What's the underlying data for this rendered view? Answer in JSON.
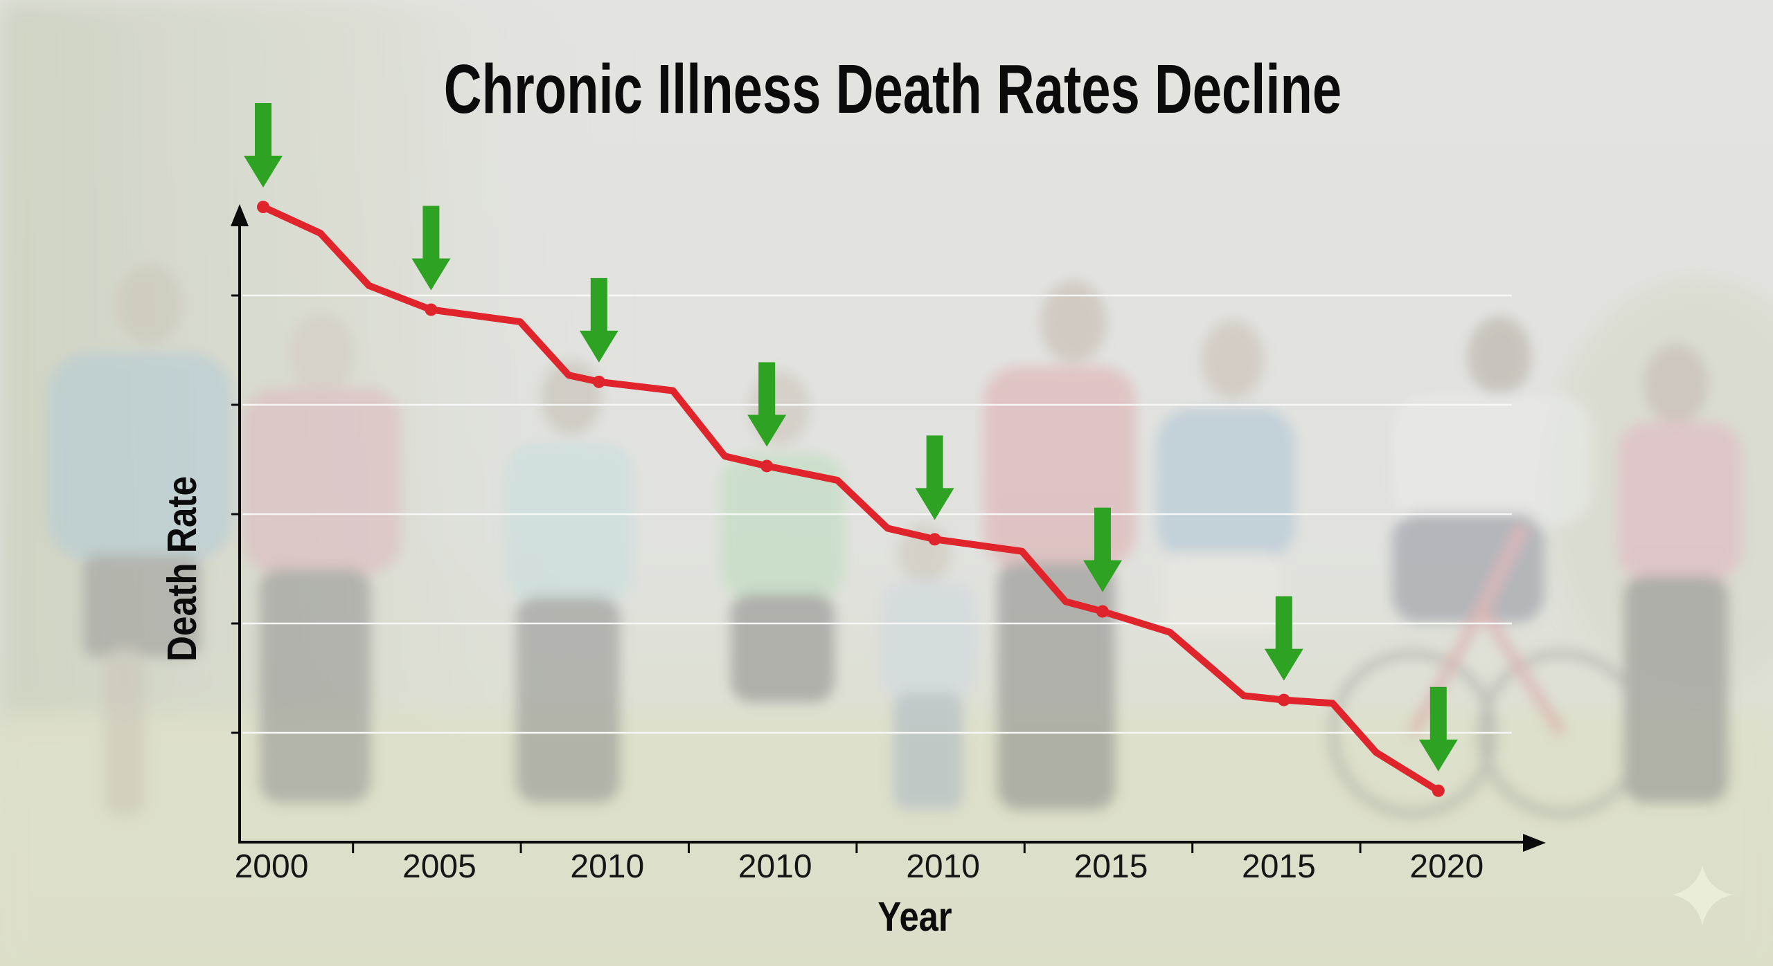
{
  "chart_data": {
    "type": "line",
    "title": "Chronic Illness Death Rates Decline",
    "xlabel": "Year",
    "ylabel": "Death Rate",
    "x_tick_labels": [
      "2000",
      "2005",
      "2010",
      "2010",
      "2010",
      "2015",
      "2015",
      "2020"
    ],
    "y_tick_labels": [],
    "ylim": [
      0,
      5.84
    ],
    "grid": true,
    "gridlines_y": [
      1,
      2,
      3,
      4,
      5
    ],
    "legend": "none",
    "series": [
      {
        "name": "Death Rate",
        "color": "#e0242b",
        "points": [
          {
            "x": 0.0,
            "y": 5.81,
            "marker": true
          },
          {
            "x": 0.34,
            "y": 5.57,
            "marker": false
          },
          {
            "x": 0.63,
            "y": 5.09,
            "marker": false
          },
          {
            "x": 1.0,
            "y": 4.87,
            "marker": true
          },
          {
            "x": 1.53,
            "y": 4.76,
            "marker": false
          },
          {
            "x": 1.82,
            "y": 4.27,
            "marker": false
          },
          {
            "x": 2.0,
            "y": 4.21,
            "marker": true
          },
          {
            "x": 2.44,
            "y": 4.13,
            "marker": false
          },
          {
            "x": 2.75,
            "y": 3.53,
            "marker": false
          },
          {
            "x": 3.0,
            "y": 3.44,
            "marker": true
          },
          {
            "x": 3.42,
            "y": 3.31,
            "marker": false
          },
          {
            "x": 3.72,
            "y": 2.87,
            "marker": false
          },
          {
            "x": 4.0,
            "y": 2.77,
            "marker": true
          },
          {
            "x": 4.52,
            "y": 2.66,
            "marker": false
          },
          {
            "x": 4.78,
            "y": 2.2,
            "marker": false
          },
          {
            "x": 5.0,
            "y": 2.11,
            "marker": true
          },
          {
            "x": 5.4,
            "y": 1.92,
            "marker": false
          },
          {
            "x": 5.84,
            "y": 1.34,
            "marker": false
          },
          {
            "x": 6.08,
            "y": 1.3,
            "marker": true
          },
          {
            "x": 6.37,
            "y": 1.27,
            "marker": false
          },
          {
            "x": 6.63,
            "y": 0.82,
            "marker": false
          },
          {
            "x": 7.0,
            "y": 0.47,
            "marker": true
          }
        ]
      }
    ],
    "annotations": {
      "down_arrows_at_markers": true,
      "arrow_color": "#2ea323"
    }
  },
  "decor": {
    "sparkle_icon": "sparkle-icon",
    "sparkle_color": "#eaeed9"
  }
}
